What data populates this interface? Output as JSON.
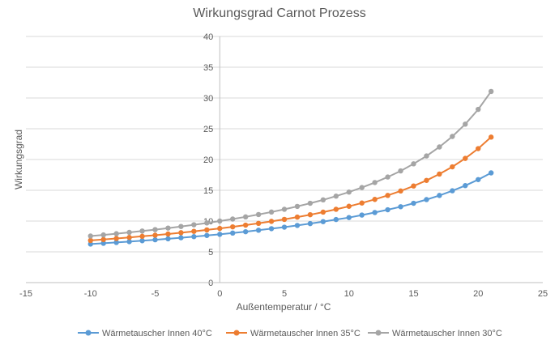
{
  "chart_data": {
    "type": "line",
    "title": "Wirkungsgrad Carnot Prozess",
    "xlabel": "Außentemperatur / °C",
    "ylabel": "Wirkungsgrad",
    "xlim": [
      -15,
      25
    ],
    "ylim": [
      0,
      40
    ],
    "xticks": [
      -15,
      -10,
      -5,
      0,
      5,
      10,
      15,
      20,
      25
    ],
    "yticks": [
      0,
      5,
      10,
      15,
      20,
      25,
      30,
      35,
      40
    ],
    "grid": "horizontal",
    "legend_position": "bottom",
    "x": [
      -10,
      -9,
      -8,
      -7,
      -6,
      -5,
      -4,
      -3,
      -2,
      -1,
      0,
      1,
      2,
      3,
      4,
      5,
      6,
      7,
      8,
      9,
      10,
      11,
      12,
      13,
      14,
      15,
      16,
      17,
      18,
      19,
      20,
      21
    ],
    "series": [
      {
        "name": "Wärmetauscher Innen 40°C",
        "color": "#5B9BD5",
        "values": [
          6.26,
          6.39,
          6.52,
          6.66,
          6.81,
          6.96,
          7.12,
          7.29,
          7.47,
          7.66,
          7.84,
          8.05,
          8.27,
          8.51,
          8.76,
          9.01,
          9.29,
          9.59,
          9.91,
          10.25,
          10.57,
          10.98,
          11.39,
          11.84,
          12.33,
          12.89,
          13.49,
          14.16,
          14.92,
          15.76,
          16.74,
          17.83
        ]
      },
      {
        "name": "Wärmetauscher Innen 35°C",
        "color": "#ED7D31",
        "values": [
          6.85,
          7.0,
          7.17,
          7.34,
          7.52,
          7.7,
          7.9,
          8.11,
          8.33,
          8.56,
          8.8,
          9.06,
          9.34,
          9.63,
          9.95,
          10.27,
          10.64,
          11.03,
          11.45,
          11.91,
          12.4,
          12.93,
          13.52,
          14.17,
          14.89,
          15.7,
          16.61,
          17.64,
          18.81,
          20.18,
          21.77,
          23.64
        ]
      },
      {
        "name": "Wärmetauscher Innen 30°C",
        "color": "#A5A5A5",
        "values": [
          7.57,
          7.75,
          7.95,
          8.16,
          8.38,
          8.61,
          8.86,
          9.12,
          9.4,
          9.69,
          10.0,
          10.33,
          10.68,
          11.06,
          11.47,
          11.91,
          12.38,
          12.89,
          13.44,
          14.05,
          14.71,
          15.45,
          16.26,
          17.16,
          18.15,
          19.3,
          20.58,
          22.04,
          23.75,
          25.75,
          28.15,
          31.06
        ]
      }
    ]
  }
}
